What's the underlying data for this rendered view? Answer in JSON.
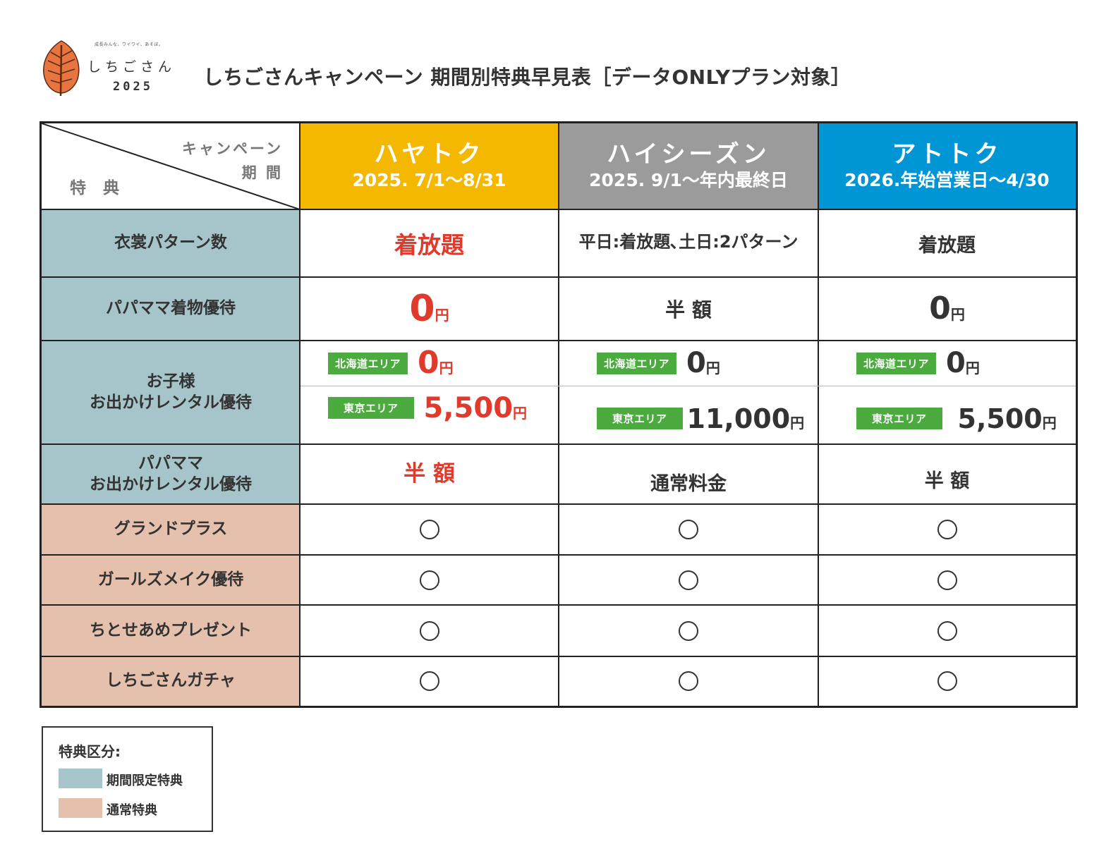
{
  "logo": {
    "tagline": "成長みんな、ワイワイ、あそぼ。",
    "name": "しちごさん",
    "year": "2025"
  },
  "title": "しちごさんキャンペーン 期間別特典早見表［データONLYプラン対象］",
  "corner": {
    "campaign_label": "キャンペーン",
    "period_label": "期 間",
    "benefit_label": "特 典"
  },
  "columns": [
    {
      "name": "ハヤトク",
      "date": "2025. 7/1～8/31",
      "color": "#f5b800"
    },
    {
      "name": "ハイシーズン",
      "date": "2025. 9/1～年内最終日",
      "color": "#9b9b9b"
    },
    {
      "name": "アトトク",
      "date": "2026.年始営業日～4/30",
      "color": "#0096d6"
    }
  ],
  "rows": {
    "costume": {
      "label": "衣裳パターン数",
      "hayatoku": "着放題",
      "high": "平日:着放題､土日:2パターン",
      "atotoku": "着放題"
    },
    "parent_kimono": {
      "label": "パパママ着物優待",
      "hayatoku_value": "0",
      "hayatoku_unit": "円",
      "high": "半 額",
      "atotoku_value": "0",
      "atotoku_unit": "円"
    },
    "child_rental": {
      "label_line1": "お子様",
      "label_line2": "お出かけレンタル優待",
      "hokkaido_badge": "北海道エリア",
      "tokyo_badge": "東京エリア",
      "unit": "円",
      "hayatoku_hokkaido": "0",
      "hayatoku_tokyo": "5,500",
      "high_hokkaido": "0",
      "high_tokyo": "11,000",
      "atotoku_hokkaido": "0",
      "atotoku_tokyo": "5,500"
    },
    "parent_rental": {
      "label_line1": "パパママ",
      "label_line2": "お出かけレンタル優待",
      "hayatoku": "半 額",
      "high": "通常料金",
      "atotoku": "半 額"
    },
    "regular": [
      {
        "label": "グランドプラス"
      },
      {
        "label": "ガールズメイク優待"
      },
      {
        "label": "ちとせあめプレゼント"
      },
      {
        "label": "しちごさんガチャ"
      }
    ]
  },
  "legend": {
    "title": "特典区分:",
    "items": [
      {
        "label": "期間限定特典",
        "color": "#a6c5ca"
      },
      {
        "label": "通常特典",
        "color": "#e5c0ad"
      }
    ]
  },
  "colors": {
    "limited": "#a6c5ca",
    "regular": "#e5c0ad",
    "red": "#e03a2c",
    "badge_green": "#4bab3f"
  }
}
